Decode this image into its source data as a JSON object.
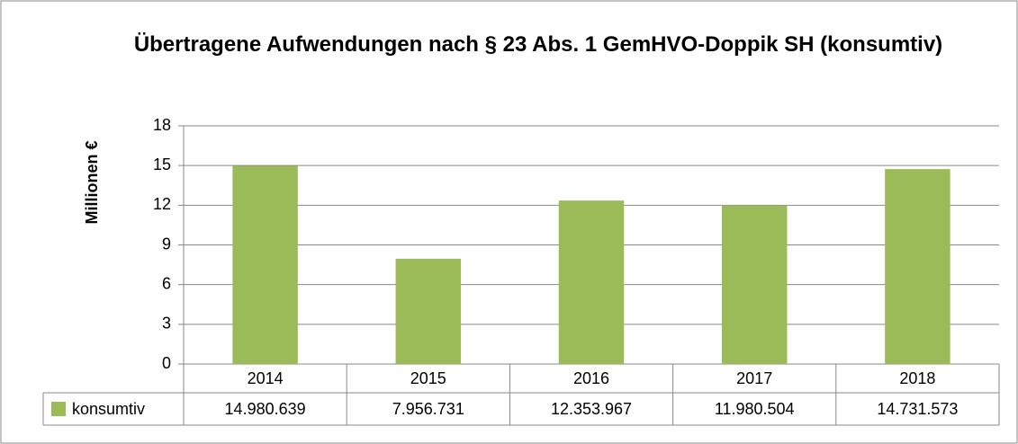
{
  "chart_data": {
    "type": "bar",
    "title": "Übertragene Aufwendungen nach § 23 Abs. 1 GemHVO-Doppik SH (konsumtiv)",
    "y_label": "Millionen €",
    "categories": [
      "2014",
      "2015",
      "2016",
      "2017",
      "2018"
    ],
    "series": [
      {
        "name": "konsumtiv",
        "color": "#9bbb59",
        "values": [
          14.980639,
          7.956731,
          12.353967,
          11.980504,
          14.731573
        ],
        "value_labels": [
          "14.980.639",
          "7.956.731",
          "12.353.967",
          "11.980.504",
          "14.731.573"
        ]
      }
    ],
    "ylim": [
      0,
      18
    ],
    "yticks": [
      0,
      3,
      6,
      9,
      12,
      15,
      18
    ],
    "grid": true
  }
}
